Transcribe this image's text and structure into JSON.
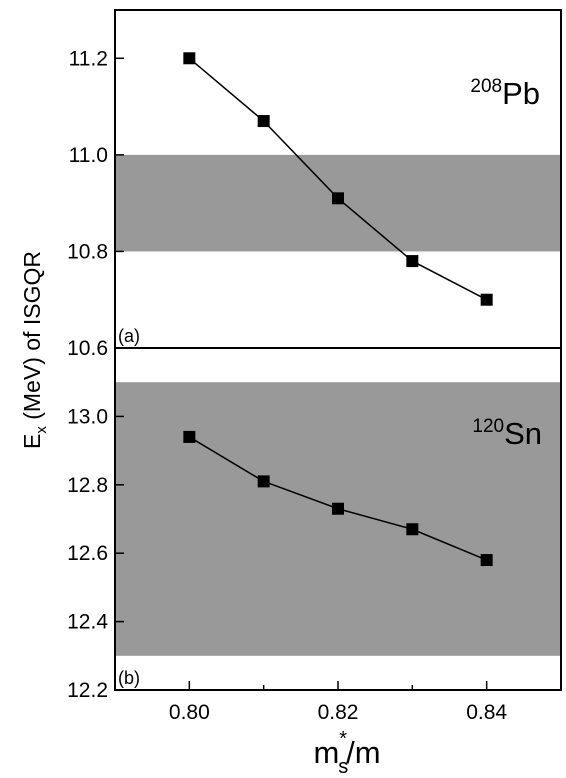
{
  "chart_data": [
    {
      "type": "line",
      "panel_label": "(a)",
      "nucleus": {
        "mass_number": "208",
        "symbol": "Pb"
      },
      "x": [
        0.8,
        0.81,
        0.82,
        0.83,
        0.84
      ],
      "series": [
        {
          "values": [
            11.2,
            11.07,
            10.91,
            10.78,
            10.7
          ]
        }
      ],
      "shaded_band": [
        10.8,
        11.0
      ],
      "xlim": [
        0.79,
        0.85
      ],
      "ylim": [
        10.6,
        11.3
      ],
      "yticks": [
        "10.6",
        "10.8",
        "11.0",
        "11.2"
      ],
      "marker": "square",
      "colors": {
        "band": "#999999",
        "line": "#000000",
        "marker": "#000000"
      }
    },
    {
      "type": "line",
      "panel_label": "(b)",
      "nucleus": {
        "mass_number": "120",
        "symbol": "Sn"
      },
      "x": [
        0.8,
        0.81,
        0.82,
        0.83,
        0.84
      ],
      "series": [
        {
          "values": [
            12.94,
            12.81,
            12.73,
            12.67,
            12.58
          ]
        }
      ],
      "shaded_band": [
        12.3,
        13.1
      ],
      "xlim": [
        0.79,
        0.85
      ],
      "ylim": [
        12.2,
        13.2
      ],
      "yticks": [
        "12.2",
        "12.4",
        "12.6",
        "12.8",
        "13.0"
      ],
      "marker": "square",
      "colors": {
        "band": "#999999",
        "line": "#000000",
        "marker": "#000000"
      }
    }
  ],
  "shared": {
    "xticks": [
      "0.80",
      "0.82",
      "0.84"
    ],
    "ylabel": {
      "E": "E",
      "sub": "x",
      "rest": " (MeV) of ISGQR"
    },
    "xlabel": {
      "m": "m",
      "sub": "s",
      "sup": "*",
      "rest": "/m"
    }
  }
}
